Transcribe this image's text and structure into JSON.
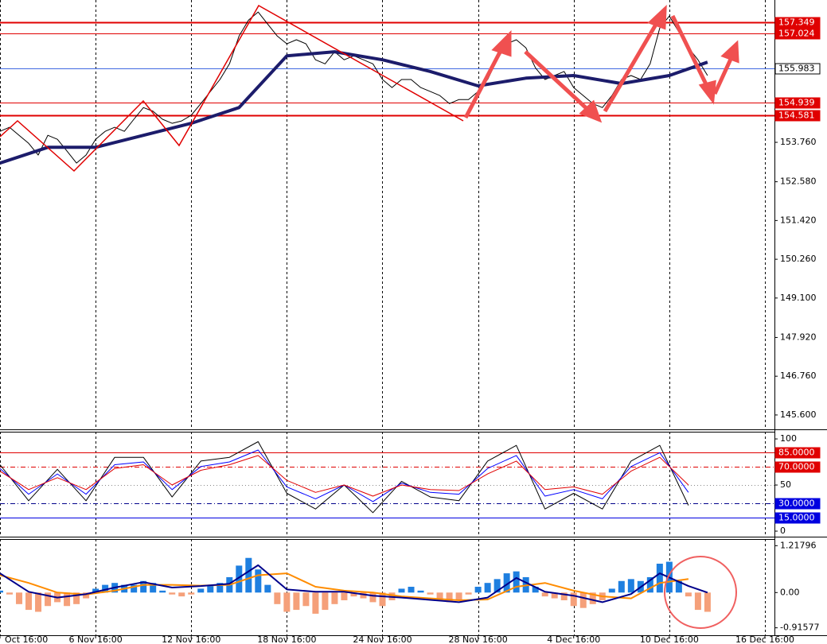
{
  "chart_data": [
    {
      "type": "line",
      "x": [
        0,
        1,
        2,
        3,
        4,
        5,
        6,
        7,
        8,
        9,
        10,
        11,
        12,
        13,
        14,
        15,
        16,
        17,
        18,
        19,
        20,
        21,
        22,
        23,
        24,
        25,
        26,
        27,
        28,
        29,
        30,
        31,
        32,
        33,
        34,
        35,
        36,
        37,
        38,
        39,
        40,
        41,
        42,
        43,
        44,
        45,
        46,
        47,
        48,
        49,
        50,
        51,
        52,
        53,
        54,
        55,
        56,
        57,
        58,
        59,
        60,
        61,
        62,
        63,
        64,
        65,
        66,
        67,
        68,
        69,
        70,
        71,
        72,
        73,
        74
      ],
      "series": [
        {
          "color": "#000000",
          "width": 1,
          "values": [
            154.09,
            154.21,
            153.97,
            153.73,
            153.38,
            153.97,
            153.85,
            153.5,
            153.14,
            153.38,
            153.85,
            154.09,
            154.21,
            154.09,
            154.45,
            154.8,
            154.69,
            154.45,
            154.33,
            154.4,
            154.57,
            154.92,
            155.28,
            155.64,
            156.11,
            156.94,
            157.42,
            157.66,
            157.3,
            156.94,
            156.71,
            156.83,
            156.71,
            156.23,
            156.11,
            156.47,
            156.23,
            156.35,
            156.23,
            156.11,
            155.64,
            155.4,
            155.64,
            155.64,
            155.4,
            155.28,
            155.16,
            154.92,
            155.04,
            155.04,
            155.28,
            155.64,
            156.23,
            156.71,
            156.83,
            156.59,
            155.99,
            155.64,
            155.76,
            155.88,
            155.4,
            155.16,
            154.92,
            154.8,
            155.16,
            155.64,
            155.76,
            155.64,
            156.11,
            157.18,
            157.54,
            157.06,
            156.59,
            156.23,
            155.76
          ]
        },
        {
          "color": "#1c1c6b",
          "width": 4,
          "x": [
            0,
            5,
            10,
            15,
            20,
            25,
            30,
            35,
            40,
            45,
            50,
            55,
            60,
            65,
            70,
            74
          ],
          "values": [
            153.14,
            153.61,
            153.61,
            153.97,
            154.33,
            154.8,
            156.35,
            156.47,
            156.23,
            155.88,
            155.45,
            155.68,
            155.76,
            155.52,
            155.76,
            156.16
          ]
        }
      ],
      "xlim": [
        0,
        81
      ],
      "ylim": [
        145.17,
        158.02
      ],
      "yticks": [
        {
          "value": 153.76,
          "label": "153.760"
        },
        {
          "value": 152.58,
          "label": "152.580"
        },
        {
          "value": 151.42,
          "label": "151.420"
        },
        {
          "value": 150.26,
          "label": "150.260"
        },
        {
          "value": 149.1,
          "label": "149.100"
        },
        {
          "value": 147.92,
          "label": "147.920"
        },
        {
          "value": 146.76,
          "label": "146.760"
        },
        {
          "value": 145.6,
          "label": "145.600"
        }
      ],
      "levels": [
        {
          "value": 157.349,
          "color": "#e00000",
          "box": "#e00000",
          "style": "solid",
          "width": 2
        },
        {
          "value": 157.024,
          "color": "#e00000",
          "box": "#e00000",
          "style": "solid",
          "width": 1
        },
        {
          "value": 155.983,
          "color": "#4169e1",
          "box": "#ffffff",
          "style": "solid",
          "width": 1
        },
        {
          "value": 154.939,
          "color": "#e00000",
          "box": "#e00000",
          "style": "solid",
          "width": 1
        },
        {
          "value": 154.581,
          "color": "#e00000",
          "box": "#e00000",
          "style": "solid",
          "width": 2
        }
      ]
    },
    {
      "type": "line",
      "x": [
        0,
        3,
        6,
        9,
        12,
        15,
        18,
        21,
        24,
        27,
        30,
        33,
        36,
        39,
        42,
        45,
        48,
        51,
        54,
        57,
        60,
        63,
        66,
        69,
        72
      ],
      "series": [
        {
          "color": "#000000",
          "width": 1,
          "values": [
            72,
            33,
            67,
            33,
            80,
            80,
            37,
            76,
            80,
            97,
            41,
            24,
            50,
            20,
            54,
            37,
            33,
            76,
            93,
            24,
            41,
            24,
            76,
            93,
            28
          ]
        },
        {
          "color": "#0000ff",
          "width": 1,
          "values": [
            68,
            40,
            62,
            40,
            72,
            75,
            45,
            70,
            75,
            88,
            48,
            35,
            50,
            32,
            52,
            42,
            40,
            68,
            82,
            38,
            45,
            35,
            70,
            85,
            42
          ]
        },
        {
          "color": "#e00000",
          "width": 1,
          "values": [
            65,
            45,
            58,
            45,
            68,
            72,
            50,
            66,
            72,
            82,
            55,
            42,
            50,
            38,
            50,
            45,
            44,
            62,
            76,
            45,
            48,
            40,
            65,
            80,
            50
          ]
        }
      ],
      "xlim": [
        0,
        81
      ],
      "ylim": [
        -6,
        107.8
      ],
      "yticks": [
        0,
        50,
        100
      ],
      "levels": [
        {
          "value": 85,
          "label": "85.0000",
          "color": "#e00000",
          "box": "#e00000",
          "style": "solid",
          "width": 1
        },
        {
          "value": 70,
          "label": "70.0000",
          "color": "#e00000",
          "box": "#e00000",
          "style": "dashdot",
          "width": 1
        },
        {
          "value": 50,
          "color": "#888888",
          "style": "dot",
          "width": 1
        },
        {
          "value": 30,
          "label": "30.0000",
          "color": "#00008b",
          "box": "#0000e0",
          "style": "dashdot",
          "width": 1
        },
        {
          "value": 15,
          "label": "15.0000",
          "color": "#0000e0",
          "box": "#0000e0",
          "style": "solid",
          "width": 1
        }
      ]
    },
    {
      "type": "bar",
      "x": [
        0,
        1,
        2,
        3,
        4,
        5,
        6,
        7,
        8,
        9,
        10,
        11,
        12,
        13,
        14,
        15,
        16,
        17,
        18,
        19,
        20,
        21,
        22,
        23,
        24,
        25,
        26,
        27,
        28,
        29,
        30,
        31,
        32,
        33,
        34,
        35,
        36,
        37,
        38,
        39,
        40,
        41,
        42,
        43,
        44,
        45,
        46,
        47,
        48,
        49,
        50,
        51,
        52,
        53,
        54,
        55,
        56,
        57,
        58,
        59,
        60,
        61,
        62,
        63,
        64,
        65,
        66,
        67,
        68,
        69,
        70,
        71,
        72,
        73,
        74
      ],
      "values": [
        0.05,
        -0.05,
        -0.3,
        -0.45,
        -0.5,
        -0.35,
        -0.25,
        -0.35,
        -0.3,
        -0.15,
        0.1,
        0.2,
        0.25,
        0.2,
        0.2,
        0.3,
        0.25,
        0.05,
        -0.05,
        -0.1,
        -0.05,
        0.1,
        0.2,
        0.25,
        0.4,
        0.7,
        0.9,
        0.6,
        0.2,
        -0.3,
        -0.5,
        -0.45,
        -0.35,
        -0.55,
        -0.45,
        -0.3,
        -0.2,
        -0.1,
        -0.15,
        -0.25,
        -0.35,
        -0.2,
        0.1,
        0.15,
        0.05,
        -0.05,
        -0.2,
        -0.25,
        -0.2,
        -0.05,
        0.15,
        0.25,
        0.35,
        0.5,
        0.55,
        0.4,
        0.15,
        -0.1,
        -0.15,
        -0.2,
        -0.35,
        -0.4,
        -0.3,
        -0.2,
        0.1,
        0.3,
        0.35,
        0.3,
        0.4,
        0.75,
        0.8,
        0.3,
        -0.1,
        -0.45,
        -0.5
      ],
      "colors": {
        "positive": "#1e7fe0",
        "negative": "#f5a07a"
      },
      "series": [
        {
          "color": "#ff8c00",
          "width": 2,
          "x": [
            0,
            3,
            6,
            9,
            12,
            15,
            18,
            21,
            24,
            27,
            30,
            33,
            36,
            39,
            42,
            45,
            48,
            51,
            54,
            57,
            60,
            63,
            66,
            69,
            72
          ],
          "values": [
            0.45,
            0.25,
            0.0,
            -0.05,
            0.05,
            0.2,
            0.2,
            0.18,
            0.2,
            0.45,
            0.5,
            0.15,
            0.05,
            0.0,
            -0.1,
            -0.15,
            -0.2,
            -0.18,
            0.15,
            0.25,
            0.05,
            -0.1,
            -0.15,
            0.25,
            0.35
          ]
        },
        {
          "color": "#00008b",
          "width": 2,
          "x": [
            0,
            3,
            6,
            9,
            12,
            15,
            18,
            21,
            24,
            27,
            30,
            33,
            36,
            39,
            42,
            45,
            48,
            51,
            54,
            57,
            60,
            63,
            66,
            69,
            72,
            74
          ],
          "values": [
            0.5,
            0.02,
            -0.13,
            -0.04,
            0.13,
            0.27,
            0.13,
            0.17,
            0.23,
            0.71,
            0.08,
            0.02,
            0.02,
            -0.08,
            -0.13,
            -0.19,
            -0.25,
            -0.13,
            0.38,
            0.02,
            -0.08,
            -0.25,
            -0.04,
            0.5,
            0.17,
            0.0
          ]
        }
      ],
      "xlim": [
        0,
        81
      ],
      "ylim": [
        -1.13,
        1.39
      ],
      "yticks": [
        1.21796,
        {
          "value": 0,
          "label": "0.00"
        },
        -0.91577
      ],
      "xticks": [
        {
          "value": 0,
          "label": "Oct 16:00"
        },
        {
          "value": 10,
          "label": "6 Nov 16:00"
        },
        {
          "value": 20,
          "label": "12 Nov 16:00"
        },
        {
          "value": 30,
          "label": "18 Nov 16:00"
        },
        {
          "value": 40,
          "label": "24 Nov 16:00"
        },
        {
          "value": 50,
          "label": "28 Nov 16:00"
        },
        {
          "value": 60,
          "label": "4 Dec 16:00"
        },
        {
          "value": 70,
          "label": "10 Dec 16:00"
        },
        {
          "value": 80,
          "label": "16 Dec 16:00"
        }
      ]
    }
  ]
}
